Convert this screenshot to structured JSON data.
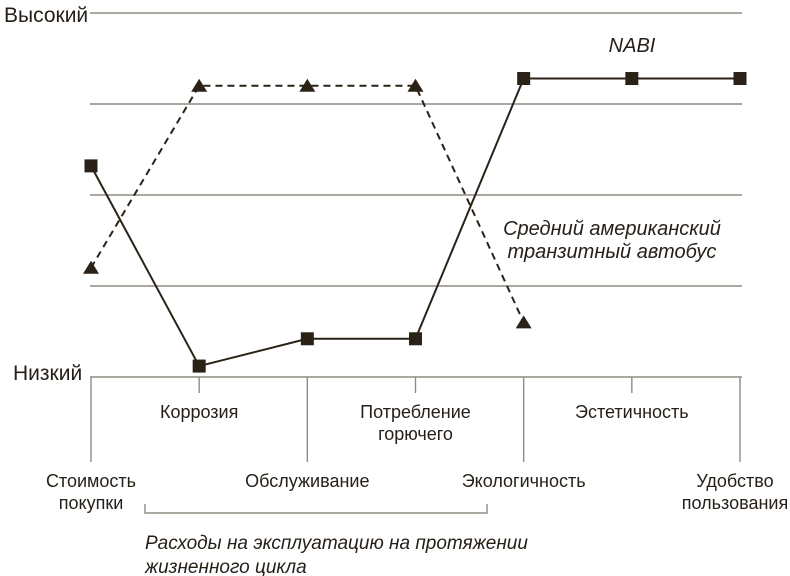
{
  "colors": {
    "line": "#2b2217",
    "grid": "#8f8b84",
    "text": "#262019",
    "background": "#ffffff"
  },
  "chart_data": {
    "type": "line",
    "title": "",
    "xlabel": "",
    "ylabel": "",
    "ylim": [
      0,
      1
    ],
    "grid": true,
    "legend_position": "inline-annotations",
    "categories": [
      "Стоимость покупки",
      "Коррозия",
      "Обслуживание",
      "Потребление горючего",
      "Экологичность",
      "Эстетичность",
      "Удобство пользования"
    ],
    "series": [
      {
        "name": "NABI",
        "marker": "square",
        "line_style": "solid",
        "values": [
          0.58,
          0.03,
          0.105,
          0.105,
          0.82,
          0.82,
          0.82
        ]
      },
      {
        "name": "Средний американский транзитный автобус",
        "marker": "triangle",
        "line_style": "dashed",
        "values": [
          0.3,
          0.8,
          0.8,
          0.8,
          0.15,
          null,
          null
        ]
      }
    ],
    "y_axis": {
      "top_label": "Высокий",
      "bottom_label": "Низкий",
      "gridline_count": 5
    },
    "x_axis": {
      "category_lines": [
        [
          "Стоимость",
          "покупки"
        ],
        [
          "Коррозия"
        ],
        [
          "Обслуживание"
        ],
        [
          "Потребление",
          "горючего"
        ],
        [
          "Экологичность"
        ],
        [
          "Эстетичность"
        ],
        [
          "Удобство",
          "пользования"
        ]
      ]
    },
    "series_labels": {
      "nabi": "NABI",
      "average_lines": [
        "Средний американский",
        "транзитный автобус"
      ]
    },
    "annotation": {
      "text": "Расходы на эксплуатацию на протяжении жизненного цикла",
      "lines": [
        "Расходы на эксплуатацию на протяжении",
        "жизненного цикла"
      ],
      "span_categories": [
        "Коррозия",
        "Обслуживание",
        "Потребление горючего"
      ]
    }
  }
}
